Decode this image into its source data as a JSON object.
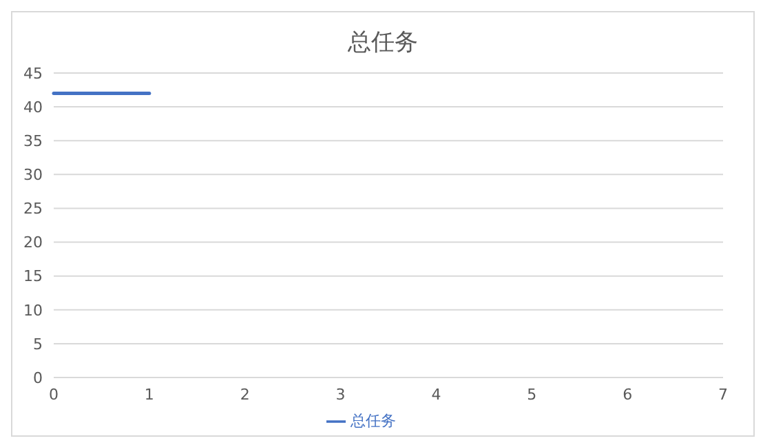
{
  "chart_data": {
    "type": "line",
    "title": "总任务",
    "categories": [
      "0",
      "1",
      "2",
      "3",
      "4",
      "5",
      "6",
      "7"
    ],
    "series": [
      {
        "name": "总任务",
        "color": "#4472c4",
        "values": [
          42,
          42,
          null,
          null,
          null,
          null,
          null,
          null
        ]
      }
    ],
    "ylim": [
      0,
      45
    ],
    "yticks": [
      0,
      5,
      10,
      15,
      20,
      25,
      30,
      35,
      40,
      45
    ],
    "grid": "y",
    "legend": "bottom",
    "marker": "none",
    "line_style": "solid"
  }
}
